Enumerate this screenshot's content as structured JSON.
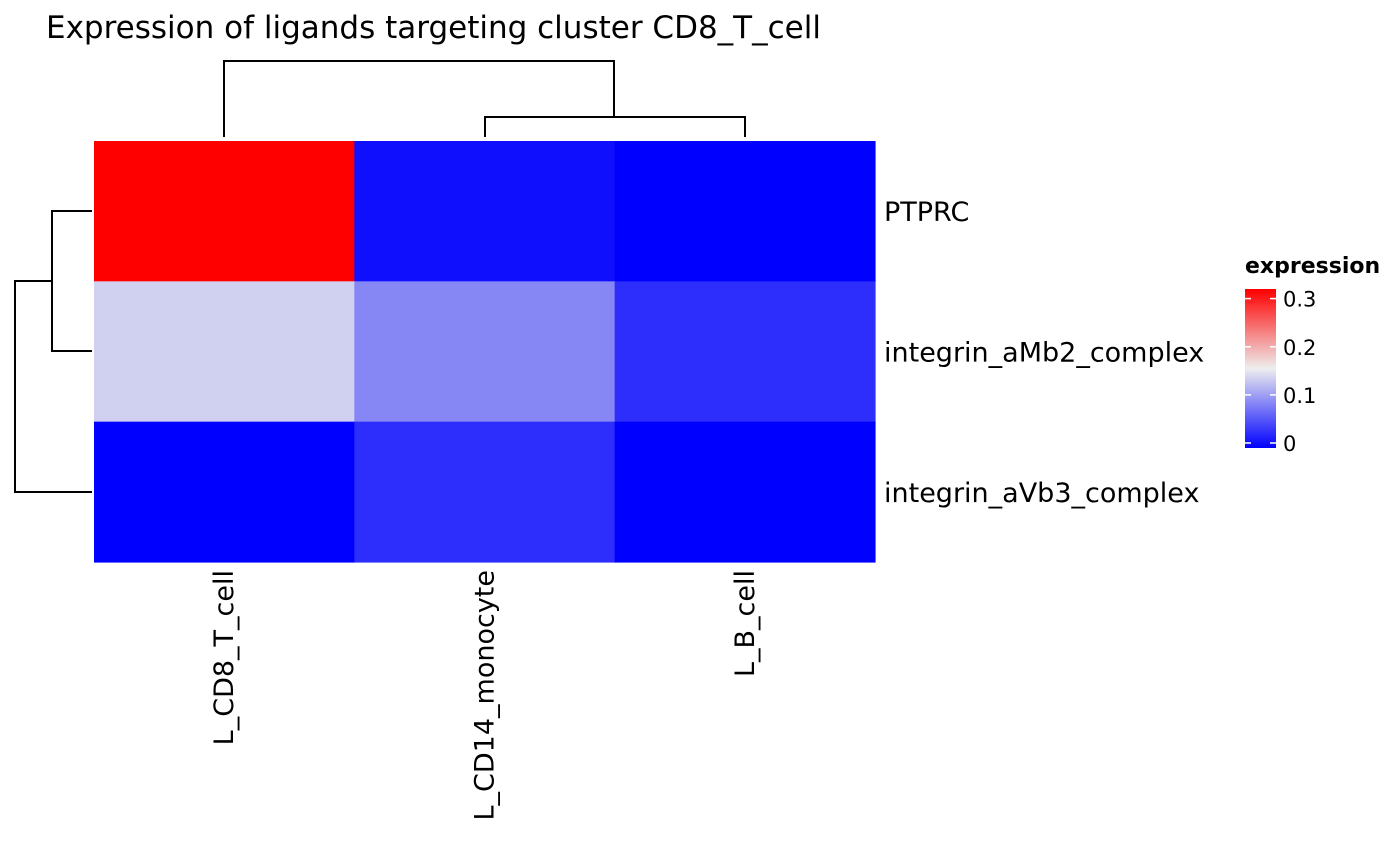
{
  "chart_data": {
    "type": "heatmap",
    "title": "Expression of ligands targeting cluster CD8_T_cell",
    "rows": [
      "PTPRC",
      "integrin_aMb2_complex",
      "integrin_aVb3_complex"
    ],
    "columns": [
      "L_CD8_T_cell",
      "L_CD14_monocyte",
      "L_B_cell"
    ],
    "values": [
      [
        0.32,
        0.01,
        0.0
      ],
      [
        0.14,
        0.09,
        0.03
      ],
      [
        0.0,
        0.03,
        0.0
      ]
    ],
    "row_dendrogram": true,
    "column_dendrogram": true,
    "column_label_orientation": "vertical",
    "colorscale": {
      "title": "expression",
      "low_color": "#0000ff",
      "mid_color": "#eeeeee",
      "high_color": "#ff0000",
      "min": 0,
      "max": 0.32,
      "ticks": [
        0,
        0.1,
        0.2,
        0.3
      ]
    },
    "legend_position": "right"
  }
}
